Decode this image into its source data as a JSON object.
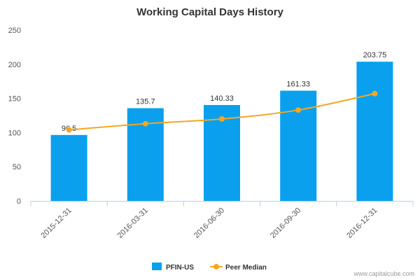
{
  "chart_data": {
    "type": "bar",
    "title": "Working Capital Days History",
    "xlabel": "",
    "ylabel": "",
    "categories": [
      "2015-12-31",
      "2016-03-31",
      "2016-06-30",
      "2016-09-30",
      "2016-12-31"
    ],
    "ylim": [
      0,
      250
    ],
    "yticks": [
      0,
      50,
      100,
      150,
      200,
      250
    ],
    "series": [
      {
        "name": "PFIN-US",
        "type": "bar",
        "color": "#0aa0ee",
        "values": [
          96.5,
          135.7,
          140.33,
          161.33,
          203.75
        ],
        "labels": [
          "96.5",
          "135.7",
          "140.33",
          "161.33",
          "203.75"
        ]
      },
      {
        "name": "Peer Median",
        "type": "line",
        "color": "#f5a623",
        "values": [
          104,
          113,
          120,
          133,
          157
        ]
      }
    ],
    "legend": "bottom-center",
    "grid": false
  },
  "footer": {
    "credit": "www.capitalcube.com"
  }
}
